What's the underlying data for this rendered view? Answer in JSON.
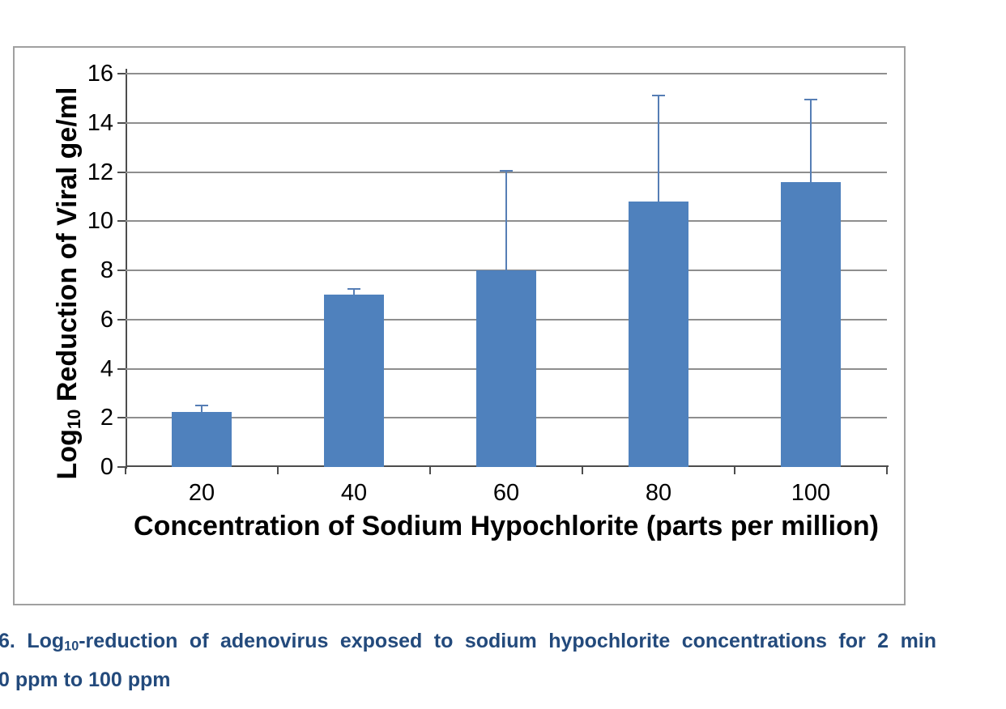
{
  "caption": {
    "line1_pre": "6. Log",
    "line1_sub": "10",
    "line1_post": "-reduction of adenovirus exposed to sodium hypochlorite concentrations for 2 min",
    "line2": "0 ppm to 100 ppm",
    "color": "#234a7c"
  },
  "chart_data": {
    "type": "bar",
    "categories": [
      "20",
      "40",
      "60",
      "80",
      "100"
    ],
    "values": [
      2.25,
      7.0,
      8.0,
      10.8,
      11.6
    ],
    "error_upper": [
      0.25,
      0.25,
      4.05,
      4.3,
      3.35
    ],
    "title": "",
    "xlabel": "Concentration of Sodium Hypochlorite (parts per million)",
    "ylabel": "Log10 Reduction of Viral ge/ml",
    "ylabel_parts": {
      "pre": "Log",
      "sub": "10",
      "post": " Reduction of Viral ge/ml"
    },
    "ylim": [
      0,
      16
    ],
    "ytick_step": 2,
    "grid": true,
    "legend": false,
    "bar_color": "#4f81bd",
    "error_bar_color": "#567eb5",
    "gridline_color": "#8e8e8e",
    "axis_color": "#4d4d4d",
    "chart_border_color": "#a0a0a0"
  }
}
